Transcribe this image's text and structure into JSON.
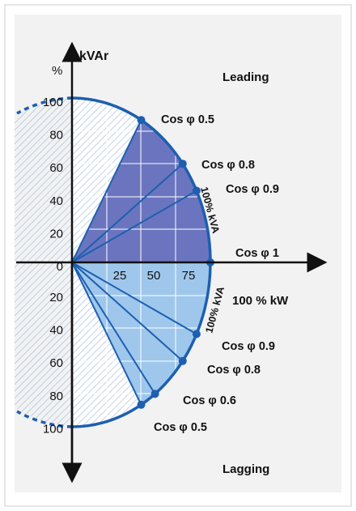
{
  "y_axis": {
    "unit_percent": "%",
    "unit": "kVAr",
    "ticks_upper": [
      "100",
      "80",
      "60",
      "40",
      "20",
      "0"
    ],
    "ticks_lower": [
      "20",
      "40",
      "60",
      "80",
      "100"
    ]
  },
  "x_axis": {
    "ticks": [
      "25",
      "50",
      "75"
    ],
    "full_label": "100 % kW"
  },
  "regions": {
    "leading": "Leading",
    "lagging": "Lagging"
  },
  "arc_labels": {
    "upper": "100% kVA",
    "lower": "100% kVA"
  },
  "phasors": {
    "upper": [
      {
        "label": "Cos φ 0.5",
        "cos_phi": 0.5
      },
      {
        "label": "Cos φ 0.8",
        "cos_phi": 0.8
      },
      {
        "label": "Cos φ 0.9",
        "cos_phi": 0.9
      }
    ],
    "unity": {
      "label": "Cos φ 1",
      "cos_phi": 1.0
    },
    "lower": [
      {
        "label": "Cos φ 0.9",
        "cos_phi": 0.9
      },
      {
        "label": "Cos φ 0.8",
        "cos_phi": 0.8
      },
      {
        "label": "Cos φ 0.6",
        "cos_phi": 0.6
      },
      {
        "label": "Cos φ 0.5",
        "cos_phi": 0.5
      }
    ]
  },
  "colors": {
    "panel_bg": "#f2f2f2",
    "frame": "#d4d4d4",
    "axis": "#111111",
    "arc": "#1d5fb0",
    "upper_fill": "#6b75bf",
    "lower_fill": "#9fc7ec",
    "hatch": "#a9bfde",
    "grid": "#ffffff",
    "dot": "#1d5fb0"
  }
}
